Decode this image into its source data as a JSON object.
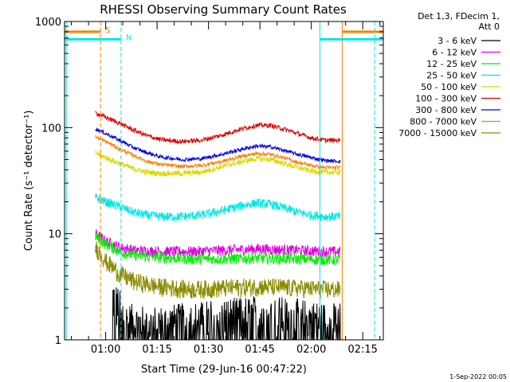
{
  "chart_data": {
    "type": "line",
    "title": "RHESSI Observing Summary Count Rates",
    "xlabel": "Start Time (29-Jun-16 00:47:22)",
    "ylabel": "Count Rate (s⁻¹ detector⁻¹)",
    "x_unit": "minutes after 00:00 UT",
    "xlim": [
      48,
      141
    ],
    "ylim": [
      1,
      1000
    ],
    "y_scale": "log",
    "x_ticks": [
      {
        "value": 60,
        "label": "01:00"
      },
      {
        "value": 75,
        "label": "01:15"
      },
      {
        "value": 90,
        "label": "01:30"
      },
      {
        "value": 105,
        "label": "01:45"
      },
      {
        "value": 120,
        "label": "02:00"
      },
      {
        "value": 135,
        "label": "02:15"
      }
    ],
    "y_ticks": [
      {
        "value": 1,
        "label": "1"
      },
      {
        "value": 10,
        "label": "10"
      },
      {
        "value": 100,
        "label": "100"
      },
      {
        "value": 1000,
        "label": "1000"
      }
    ],
    "legend_title": [
      "Det 1,3, FDecim 1,",
      "Att 0"
    ],
    "legend_position": "right",
    "series": [
      {
        "name": "3 - 6 keV",
        "color": "#000000",
        "noise": 0.5,
        "x": [
          62,
          64,
          66,
          70,
          76,
          84,
          92,
          100,
          106,
          112,
          118,
          124,
          128.5
        ],
        "values": [
          2.6,
          2.0,
          1.5,
          1.4,
          1.4,
          1.5,
          1.6,
          1.7,
          1.8,
          1.7,
          1.6,
          1.5,
          1.5
        ]
      },
      {
        "name": "6 - 12 keV",
        "color": "#e000e0",
        "noise": 0.12,
        "x": [
          57,
          60,
          64,
          68,
          75,
          85,
          95,
          105,
          115,
          125,
          128.5
        ],
        "values": [
          10,
          8.5,
          7.5,
          7.0,
          6.8,
          6.8,
          7.0,
          7.2,
          7.0,
          6.8,
          6.8
        ]
      },
      {
        "name": "12 - 25 keV",
        "color": "#00ee00",
        "noise": 0.12,
        "x": [
          57,
          60,
          64,
          68,
          75,
          85,
          95,
          105,
          115,
          125,
          128.5
        ],
        "values": [
          9.5,
          8.0,
          6.8,
          6.3,
          6.0,
          5.8,
          5.8,
          5.9,
          5.8,
          5.7,
          5.7
        ]
      },
      {
        "name": "25 - 50 keV",
        "color": "#00e6e6",
        "noise": 0.1,
        "x": [
          57,
          60,
          64,
          68,
          72,
          76,
          82,
          88,
          94,
          100,
          104,
          108,
          112,
          116,
          120,
          124,
          128.5
        ],
        "values": [
          22,
          20,
          18,
          16,
          15,
          14.5,
          14.5,
          15,
          16.5,
          18.5,
          19.5,
          19,
          17.5,
          16,
          15,
          14.5,
          14.5
        ]
      },
      {
        "name": "50 - 100 keV",
        "color": "#d8d800",
        "noise": 0.06,
        "x": [
          57,
          60,
          64,
          68,
          72,
          76,
          82,
          88,
          94,
          100,
          104,
          108,
          112,
          116,
          120,
          124,
          128.5
        ],
        "values": [
          58,
          52,
          46,
          41,
          38,
          37,
          37,
          38,
          43,
          48,
          51,
          50,
          46,
          42,
          39,
          38,
          38
        ]
      },
      {
        "name": "100 - 300 keV",
        "color": "#e00000",
        "noise": 0.05,
        "x": [
          57,
          60,
          64,
          68,
          72,
          76,
          82,
          88,
          94,
          100,
          104,
          108,
          112,
          116,
          120,
          124,
          128.5
        ],
        "values": [
          138,
          125,
          110,
          95,
          84,
          77,
          74,
          76,
          85,
          98,
          105,
          105,
          97,
          88,
          80,
          76,
          76
        ]
      },
      {
        "name": "300 - 800 keV",
        "color": "#0000e6",
        "noise": 0.04,
        "x": [
          57,
          60,
          64,
          68,
          72,
          76,
          82,
          88,
          94,
          100,
          104,
          108,
          112,
          116,
          120,
          124,
          128.5
        ],
        "values": [
          98,
          88,
          76,
          65,
          58,
          53,
          50,
          51,
          56,
          63,
          67,
          66,
          61,
          56,
          52,
          49,
          48
        ]
      },
      {
        "name": "800 - 7000 keV",
        "color": "#ff7f00",
        "noise": 0.04,
        "x": [
          57,
          60,
          64,
          68,
          72,
          76,
          82,
          88,
          94,
          100,
          104,
          108,
          112,
          116,
          120,
          124,
          128.5
        ],
        "values": [
          82,
          74,
          63,
          55,
          48,
          45,
          43,
          44,
          48,
          54,
          57,
          56,
          52,
          47,
          44,
          42,
          42
        ]
      },
      {
        "name": "7000 - 15000 keV",
        "color": "#8b8b00",
        "noise": 0.2,
        "x": [
          57,
          60,
          64,
          68,
          75,
          85,
          95,
          105,
          115,
          125,
          128.5
        ],
        "values": [
          7.5,
          5.5,
          4.2,
          3.6,
          3.2,
          3.0,
          3.1,
          3.2,
          3.1,
          3.0,
          3.0
        ]
      }
    ],
    "markers": {
      "vertical_lines": [
        {
          "x": 48.5,
          "color": "#00e6e6",
          "style": "solid"
        },
        {
          "x": 58.5,
          "color": "#ff7f00",
          "style": "dashed"
        },
        {
          "x": 64.5,
          "color": "#00e6e6",
          "style": "dashed"
        },
        {
          "x": 122.5,
          "color": "#00e6e6",
          "style": "solid"
        },
        {
          "x": 129.0,
          "color": "#ff7f00",
          "style": "solid"
        },
        {
          "x": 138.5,
          "color": "#00e6e6",
          "style": "dashed"
        }
      ],
      "bars": [
        {
          "x0": 48,
          "x1": 58.5,
          "y": 800,
          "color": "#ff7f00",
          "label": "S"
        },
        {
          "x0": 129,
          "x1": 141,
          "y": 800,
          "color": "#ff7f00",
          "label": ""
        },
        {
          "x0": 48,
          "x1": 64.5,
          "y": 680,
          "color": "#00e6e6",
          "label": "N"
        },
        {
          "x0": 122.5,
          "x1": 141,
          "y": 680,
          "color": "#00e6e6",
          "label": ""
        }
      ]
    }
  },
  "footer": {
    "date": "1-Sep-2022 00:05"
  }
}
